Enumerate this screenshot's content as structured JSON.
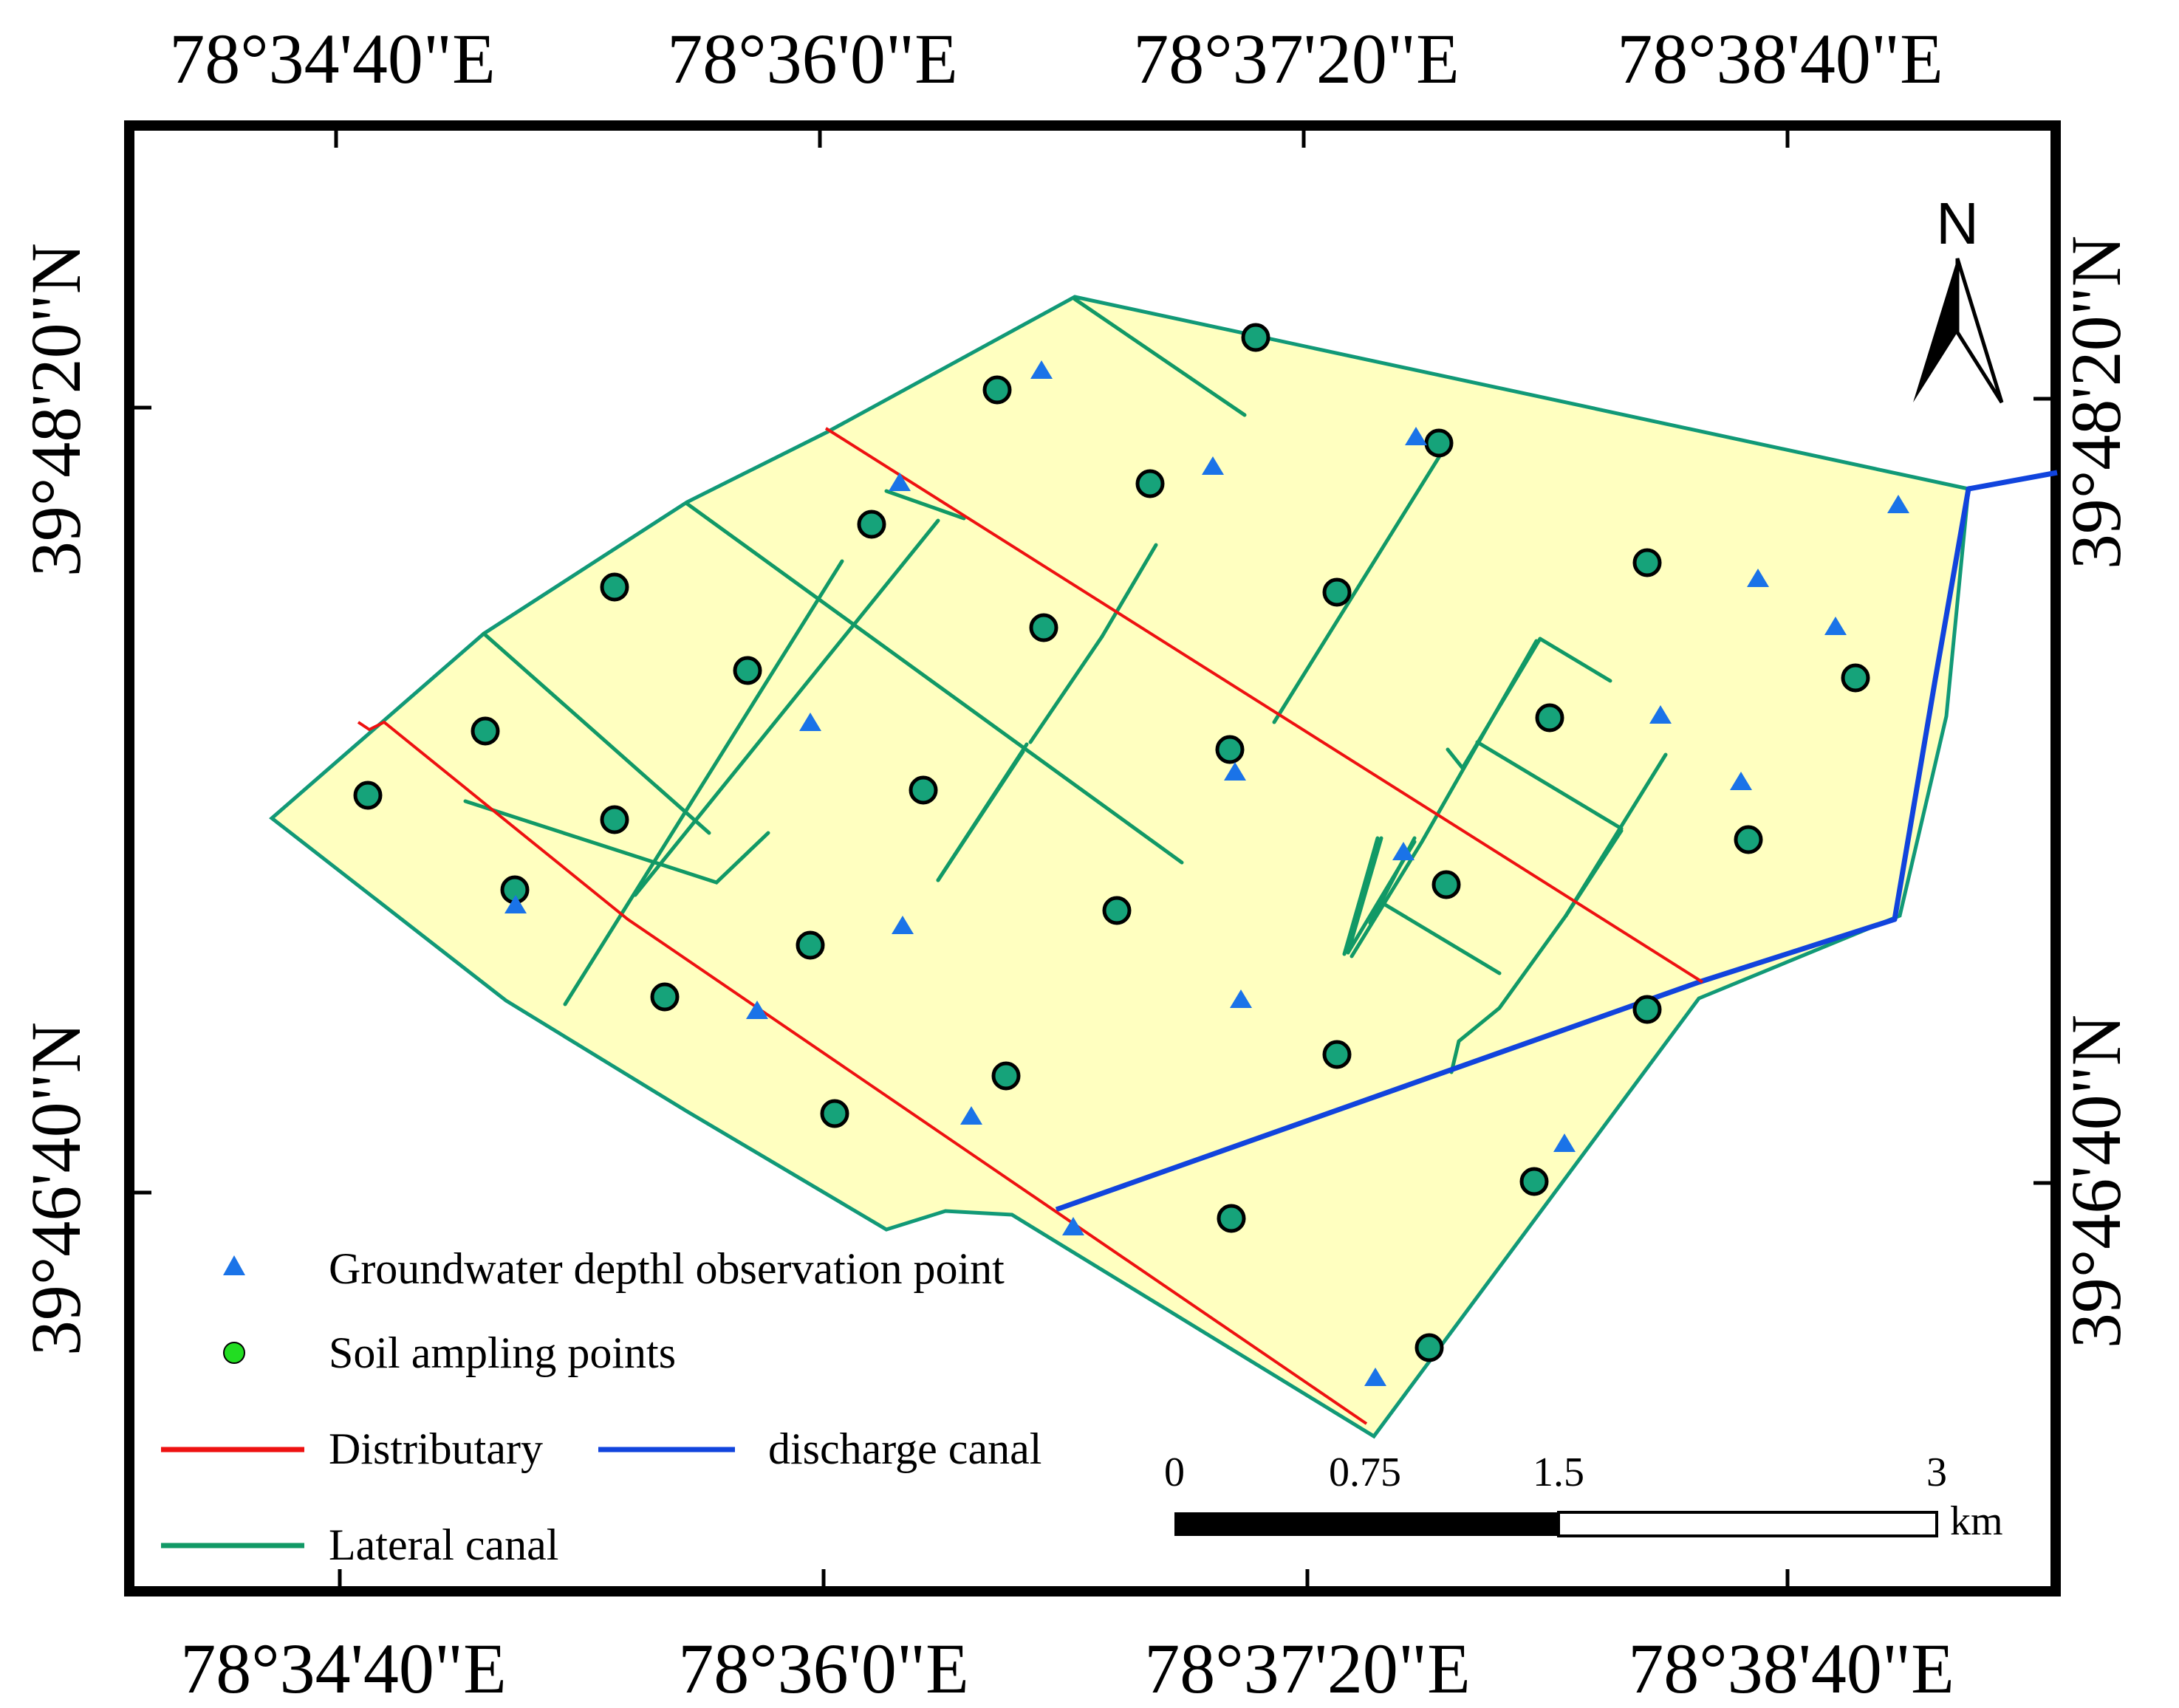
{
  "map": {
    "lon_labels": [
      "78°34'40\"E",
      "78°36'0\"E",
      "78°37'20\"E",
      "78°38'40\"E"
    ],
    "lat_labels": [
      "39°48'20\"N",
      "39°46'40\"N"
    ],
    "north_label": "N",
    "scale": {
      "ticks": [
        "0",
        "0.75",
        "1.5",
        "3"
      ],
      "unit": "km"
    },
    "legend": [
      {
        "id": "groundwater",
        "label": "Groundwater depthl observation point",
        "color": "#1a73e8"
      },
      {
        "id": "soil",
        "label": "Soil ampling points",
        "color": "#22dd22"
      },
      {
        "id": "distributary",
        "label": "Distributary",
        "color": "#ee1111"
      },
      {
        "id": "discharge",
        "label": "discharge canal",
        "color": "#1144dd"
      },
      {
        "id": "lateral",
        "label": "Lateral canal",
        "color": "#119966"
      }
    ],
    "colors": {
      "study_area_fill": "#ffffc0",
      "boundary": "#119977",
      "soil_point_fill": "#16a37a",
      "groundwater_marker": "#1a73e8"
    }
  }
}
